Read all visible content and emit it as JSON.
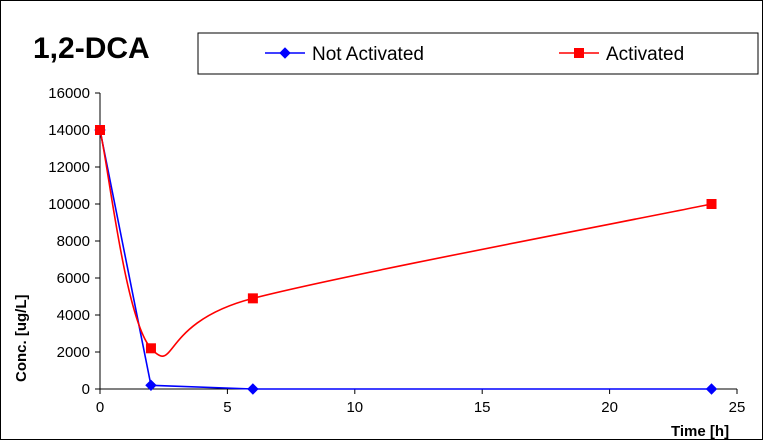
{
  "chart_data": {
    "type": "line",
    "title": "1,2-DCA",
    "xlabel": "Time [h]",
    "ylabel": "Conc. [ug/L]",
    "xlim": [
      0,
      25
    ],
    "ylim": [
      0,
      16000
    ],
    "x_ticks": [
      "0",
      "5",
      "10",
      "15",
      "20",
      "25"
    ],
    "y_ticks": [
      "0",
      "2000",
      "4000",
      "6000",
      "8000",
      "10000",
      "12000",
      "14000",
      "16000"
    ],
    "grid": false,
    "legend_position": "top",
    "series": [
      {
        "name": "Not Activated",
        "color": "#0000ff",
        "marker": "diamond",
        "smooth": false,
        "x": [
          0,
          2,
          6,
          24
        ],
        "y": [
          14000,
          200,
          0,
          0
        ]
      },
      {
        "name": "Activated",
        "color": "#ff0000",
        "marker": "square",
        "smooth": true,
        "x": [
          0,
          2,
          6,
          24
        ],
        "y": [
          14000,
          2200,
          4900,
          10000
        ]
      }
    ]
  }
}
